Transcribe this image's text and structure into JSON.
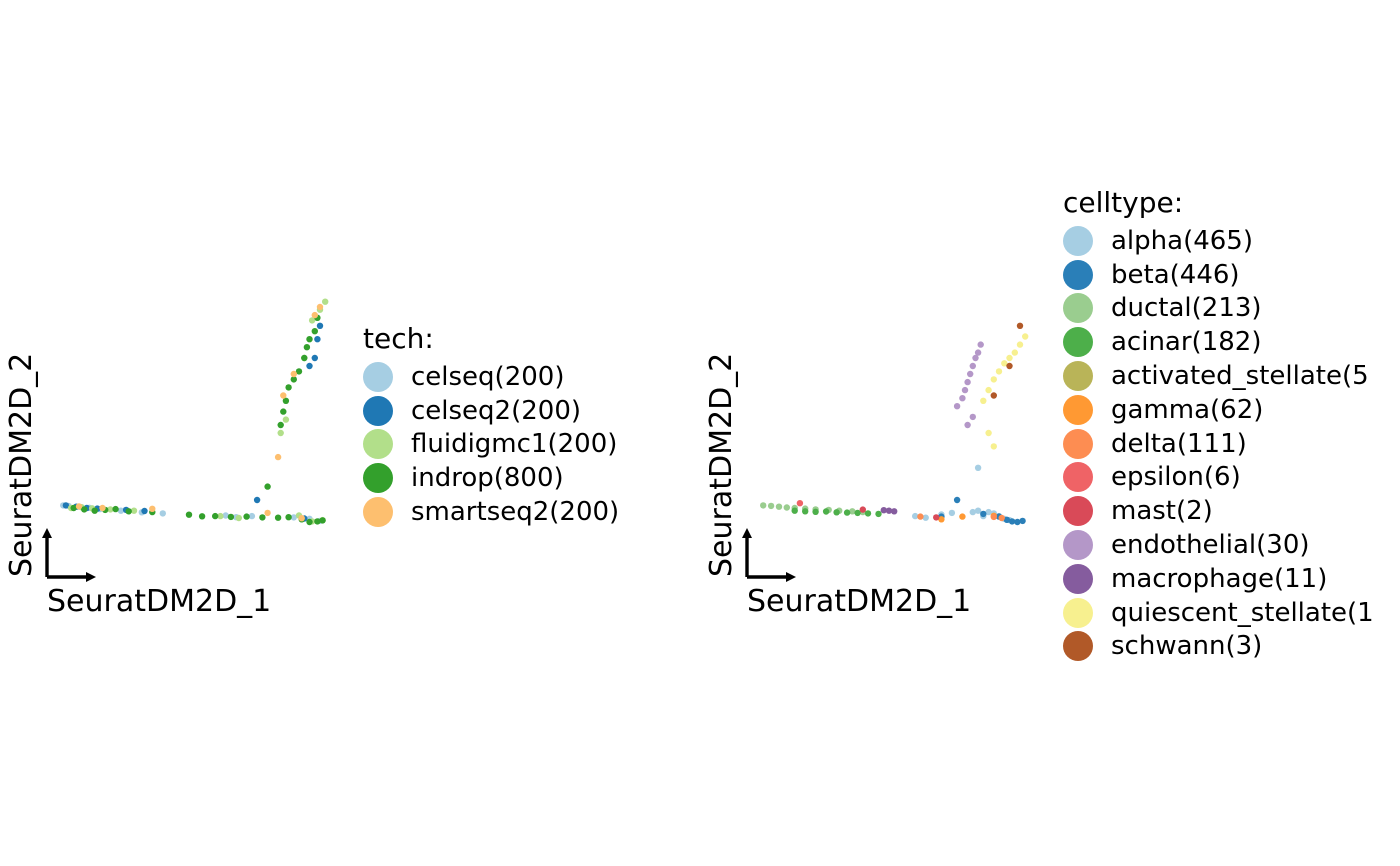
{
  "panels": [
    {
      "xlabel": "SeuratDM2D_1",
      "ylabel": "SeuratDM2D_2",
      "legend_title": "tech:",
      "legend": [
        {
          "label": "celseq(200)",
          "color": "#A6CEE3"
        },
        {
          "label": "celseq2(200)",
          "color": "#1F78B4"
        },
        {
          "label": "fluidigmc1(200)",
          "color": "#B2DF8A"
        },
        {
          "label": "indrop(800)",
          "color": "#33A02C"
        },
        {
          "label": "smartseq2(200)",
          "color": "#FDBF6F"
        }
      ]
    },
    {
      "xlabel": "SeuratDM2D_1",
      "ylabel": "SeuratDM2D_2",
      "legend_title": "celltype:",
      "legend": [
        {
          "label": "alpha(465)",
          "color": "#A6CEE3"
        },
        {
          "label": "beta(446)",
          "color": "#2A7FB8"
        },
        {
          "label": "ductal(213)",
          "color": "#9ACD8F"
        },
        {
          "label": "acinar(182)",
          "color": "#4DAF4A"
        },
        {
          "label": "activated_stellate(5",
          "color": "#B9B458"
        },
        {
          "label": "gamma(62)",
          "color": "#FF9933"
        },
        {
          "label": "delta(111)",
          "color": "#FD8D52"
        },
        {
          "label": "epsilon(6)",
          "color": "#EF6366"
        },
        {
          "label": "mast(2)",
          "color": "#D94A58"
        },
        {
          "label": "endothelial(30)",
          "color": "#B497C8"
        },
        {
          "label": "macrophage(11)",
          "color": "#855C9E"
        },
        {
          "label": "quiescent_stellate(1",
          "color": "#F7F08F"
        },
        {
          "label": "schwann(3)",
          "color": "#B15928"
        }
      ]
    }
  ],
  "chart_data": [
    {
      "type": "scatter",
      "title": "",
      "xlabel": "SeuratDM2D_1",
      "ylabel": "SeuratDM2D_2",
      "xlim": [
        0,
        100
      ],
      "ylim": [
        0,
        100
      ],
      "grid": false,
      "axes": "arrows-only",
      "legend_position": "right",
      "note": "",
      "series": [
        {
          "name": "celseq(200)",
          "color": "#A6CEE3",
          "points": [
            [
              2,
              23
            ],
            [
              4,
              22.8
            ],
            [
              8,
              22.5
            ],
            [
              12,
              22.1
            ],
            [
              16,
              21.6
            ],
            [
              24,
              21
            ],
            [
              32,
              20.4
            ],
            [
              40,
              20
            ],
            [
              64,
              19.2
            ],
            [
              68,
              18.6
            ],
            [
              74,
              19
            ],
            [
              90,
              18.5
            ],
            [
              96,
              18
            ],
            [
              100,
              17.2
            ]
          ]
        },
        {
          "name": "celseq2(200)",
          "color": "#1F78B4",
          "points": [
            [
              3,
              23
            ],
            [
              7,
              22.5
            ],
            [
              11,
              22
            ],
            [
              15,
              21.8
            ],
            [
              26,
              21.3
            ],
            [
              33,
              20.9
            ],
            [
              76,
              25
            ],
            [
              94,
              18.1
            ],
            [
              96,
              75
            ],
            [
              98,
              78
            ],
            [
              99,
              85
            ],
            [
              100,
              90
            ]
          ]
        },
        {
          "name": "fluidigmc1(200)",
          "color": "#B2DF8A",
          "points": [
            [
              5,
              22
            ],
            [
              9,
              22.3
            ],
            [
              13,
              21.9
            ],
            [
              20,
              21.5
            ],
            [
              29,
              21
            ],
            [
              62,
              19
            ],
            [
              69,
              18.3
            ],
            [
              92,
              19.2
            ],
            [
              97,
              17
            ],
            [
              101,
              17.5
            ],
            [
              85,
              50
            ],
            [
              87,
              55
            ],
            [
              94,
              78
            ],
            [
              97,
              92
            ],
            [
              100,
              96
            ],
            [
              102,
              99
            ]
          ]
        },
        {
          "name": "indrop(800)",
          "color": "#33A02C",
          "points": [
            [
              6,
              22
            ],
            [
              10,
              21.5
            ],
            [
              14,
              21
            ],
            [
              18,
              21.3
            ],
            [
              22,
              21.6
            ],
            [
              27,
              20.8
            ],
            [
              36,
              20.5
            ],
            [
              50,
              19.5
            ],
            [
              55,
              18.9
            ],
            [
              60,
              19
            ],
            [
              66,
              18.7
            ],
            [
              72,
              18.8
            ],
            [
              78,
              18.5
            ],
            [
              84,
              18.4
            ],
            [
              88,
              18.6
            ],
            [
              93,
              17.8
            ],
            [
              96,
              16.8
            ],
            [
              99,
              17
            ],
            [
              101,
              17.4
            ],
            [
              80,
              30
            ],
            [
              85,
              53
            ],
            [
              86,
              58
            ],
            [
              87,
              62
            ],
            [
              88,
              67
            ],
            [
              90,
              70
            ],
            [
              92,
              73
            ],
            [
              94,
              78
            ],
            [
              95,
              82
            ],
            [
              96,
              85
            ],
            [
              98,
              88
            ],
            [
              99,
              93
            ]
          ]
        },
        {
          "name": "smartseq2(200)",
          "color": "#FDBF6F",
          "points": [
            [
              8,
              22.6
            ],
            [
              17,
              22
            ],
            [
              36,
              21.7
            ],
            [
              80,
              20.2
            ],
            [
              93,
              18.2
            ],
            [
              84,
              41
            ],
            [
              86,
              64
            ],
            [
              90,
              72
            ],
            [
              98,
              94
            ],
            [
              100,
              97
            ]
          ]
        }
      ]
    },
    {
      "type": "scatter",
      "title": "",
      "xlabel": "SeuratDM2D_1",
      "ylabel": "SeuratDM2D_2",
      "xlim": [
        0,
        100
      ],
      "ylim": [
        0,
        100
      ],
      "grid": false,
      "axes": "arrows-only",
      "legend_position": "right",
      "note": "",
      "series": [
        {
          "name": "alpha(465)",
          "color": "#A6CEE3",
          "points": [
            [
              60,
              19
            ],
            [
              64,
              18.4
            ],
            [
              70,
              19.6
            ],
            [
              74,
              20.2
            ],
            [
              82,
              20.5
            ],
            [
              84,
              21
            ],
            [
              86,
              19
            ],
            [
              88,
              20.5
            ],
            [
              90,
              20
            ],
            [
              92,
              19
            ],
            [
              94,
              18
            ],
            [
              96,
              17.5
            ],
            [
              84,
              37
            ]
          ]
        },
        {
          "name": "beta(446)",
          "color": "#2A7FB8",
          "points": [
            [
              70,
              18.8
            ],
            [
              76,
              25
            ],
            [
              86,
              19.8
            ],
            [
              92,
              18.8
            ],
            [
              95,
              17.6
            ],
            [
              97,
              17
            ],
            [
              99,
              16.8
            ],
            [
              101,
              17.2
            ]
          ]
        },
        {
          "name": "ductal(213)",
          "color": "#9ACD8F",
          "points": [
            [
              2,
              23
            ],
            [
              5,
              22.8
            ],
            [
              8,
              22.5
            ],
            [
              11,
              22.2
            ],
            [
              14,
              22
            ],
            [
              18,
              21.8
            ],
            [
              22,
              21.5
            ],
            [
              27,
              21.3
            ],
            [
              31,
              21
            ],
            [
              36,
              20.8
            ],
            [
              40,
              20.5
            ]
          ]
        },
        {
          "name": "acinar(182)",
          "color": "#4DAF4A",
          "points": [
            [
              14,
              21
            ],
            [
              18,
              20.8
            ],
            [
              22,
              20.6
            ],
            [
              26,
              20.7
            ],
            [
              30,
              20.4
            ],
            [
              34,
              20.3
            ],
            [
              38,
              20.2
            ],
            [
              42,
              20
            ],
            [
              46,
              19.8
            ]
          ]
        },
        {
          "name": "activated_stellate(5",
          "color": "#B9B458"
        },
        {
          "name": "gamma(62)",
          "color": "#FF9933",
          "points": [
            [
              70,
              17.8
            ],
            [
              78,
              18.8
            ],
            [
              90,
              19.1
            ]
          ]
        },
        {
          "name": "delta(111)",
          "color": "#FD8D52",
          "points": [
            [
              62,
              18.8
            ],
            [
              90,
              18.7
            ],
            [
              93,
              18.3
            ]
          ]
        },
        {
          "name": "epsilon(6)",
          "color": "#EF6366",
          "points": [
            [
              16,
              23.8
            ]
          ]
        },
        {
          "name": "mast(2)",
          "color": "#D94A58",
          "points": [
            [
              40,
              21.4
            ],
            [
              68,
              18.5
            ]
          ]
        },
        {
          "name": "endothelial(30)",
          "color": "#B497C8",
          "points": [
            [
              76,
              60
            ],
            [
              78,
              63
            ],
            [
              79,
              66
            ],
            [
              80,
              69
            ],
            [
              81,
              72
            ],
            [
              82,
              75
            ],
            [
              83,
              78
            ],
            [
              84,
              80
            ],
            [
              85,
              83
            ],
            [
              82,
              56
            ],
            [
              80,
              53
            ]
          ]
        },
        {
          "name": "macrophage(11)",
          "color": "#855C9E",
          "points": [
            [
              48,
              21.2
            ],
            [
              50,
              21
            ],
            [
              52,
              20.8
            ]
          ]
        },
        {
          "name": "quiescent_stellate(1",
          "color": "#F7F08F",
          "points": [
            [
              86,
              62
            ],
            [
              88,
              66
            ],
            [
              90,
              70
            ],
            [
              92,
              73
            ],
            [
              94,
              76
            ],
            [
              96,
              78
            ],
            [
              98,
              80
            ],
            [
              100,
              83
            ],
            [
              102,
              86
            ],
            [
              88,
              50
            ],
            [
              90,
              45
            ]
          ]
        },
        {
          "name": "schwann(3)",
          "color": "#B15928",
          "points": [
            [
              90,
              64
            ],
            [
              96,
              75
            ],
            [
              100,
              90
            ]
          ]
        }
      ]
    }
  ]
}
